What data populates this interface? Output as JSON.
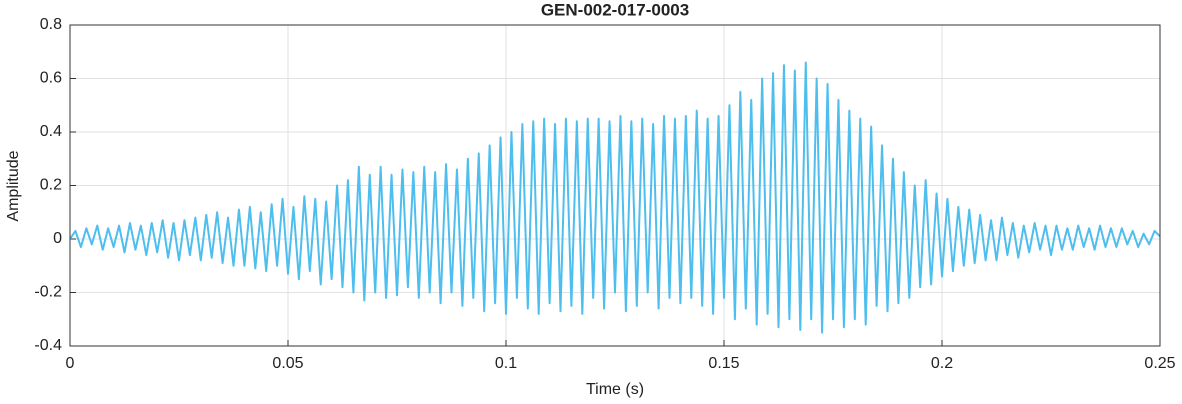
{
  "chart_data": {
    "type": "line",
    "title": "GEN-002-017-0003",
    "xlabel": "Time (s)",
    "ylabel": "Amplitude",
    "color": "#4dbeee",
    "grid": true,
    "xlim": [
      0,
      0.25
    ],
    "ylim": [
      -0.4,
      0.8
    ],
    "xticks": [
      0,
      0.05,
      0.1,
      0.15,
      0.2,
      0.25
    ],
    "yticks": [
      -0.4,
      -0.2,
      0,
      0.2,
      0.4,
      0.6,
      0.8
    ],
    "x": [
      0,
      0.00125,
      0.0025,
      0.00375,
      0.005,
      0.00625,
      0.0075,
      0.00875,
      0.01,
      0.01125,
      0.0125,
      0.01375,
      0.015,
      0.01625,
      0.0175,
      0.01875,
      0.02,
      0.02125,
      0.0225,
      0.02375,
      0.025,
      0.02625,
      0.0275,
      0.02875,
      0.03,
      0.03125,
      0.0325,
      0.03375,
      0.035,
      0.03625,
      0.0375,
      0.03875,
      0.04,
      0.04125,
      0.0425,
      0.04375,
      0.045,
      0.04625,
      0.0475,
      0.04875,
      0.05,
      0.05125,
      0.0525,
      0.05375,
      0.055,
      0.05625,
      0.0575,
      0.05875,
      0.06,
      0.06125,
      0.0625,
      0.06375,
      0.065,
      0.06625,
      0.0675,
      0.06875,
      0.07,
      0.07125,
      0.0725,
      0.07375,
      0.075,
      0.07625,
      0.0775,
      0.07875,
      0.08,
      0.08125,
      0.0825,
      0.08375,
      0.085,
      0.08625,
      0.0875,
      0.08875,
      0.09,
      0.09125,
      0.0925,
      0.09375,
      0.095,
      0.09625,
      0.0975,
      0.09875,
      0.1,
      0.10125,
      0.1025,
      0.10375,
      0.105,
      0.10625,
      0.1075,
      0.10875,
      0.11,
      0.11125,
      0.1125,
      0.11375,
      0.115,
      0.11625,
      0.1175,
      0.11875,
      0.12,
      0.12125,
      0.1225,
      0.12375,
      0.125,
      0.12625,
      0.1275,
      0.12875,
      0.13,
      0.13125,
      0.1325,
      0.13375,
      0.135,
      0.13625,
      0.1375,
      0.13875,
      0.14,
      0.14125,
      0.1425,
      0.14375,
      0.145,
      0.14625,
      0.1475,
      0.14875,
      0.15,
      0.15125,
      0.1525,
      0.15375,
      0.155,
      0.15625,
      0.1575,
      0.15875,
      0.16,
      0.16125,
      0.1625,
      0.16375,
      0.165,
      0.16625,
      0.1675,
      0.16875,
      0.17,
      0.17125,
      0.1725,
      0.17375,
      0.175,
      0.17625,
      0.1775,
      0.17875,
      0.18,
      0.18125,
      0.1825,
      0.18375,
      0.185,
      0.18625,
      0.1875,
      0.18875,
      0.19,
      0.19125,
      0.1925,
      0.19375,
      0.195,
      0.19625,
      0.1975,
      0.19875,
      0.2,
      0.20125,
      0.2025,
      0.20375,
      0.205,
      0.20625,
      0.2075,
      0.20875,
      0.21,
      0.21125,
      0.2125,
      0.21375,
      0.215,
      0.21625,
      0.2175,
      0.21875,
      0.22,
      0.22125,
      0.2225,
      0.22375,
      0.225,
      0.22625,
      0.2275,
      0.22875,
      0.23,
      0.23125,
      0.2325,
      0.23375,
      0.235,
      0.23625,
      0.2375,
      0.23875,
      0.24,
      0.24125,
      0.2425,
      0.24375,
      0.245,
      0.24625,
      0.2475,
      0.24875,
      0.25
    ],
    "values": [
      0.0,
      0.03,
      -0.03,
      0.04,
      -0.02,
      0.05,
      -0.04,
      0.04,
      -0.03,
      0.05,
      -0.05,
      0.06,
      -0.04,
      0.05,
      -0.06,
      0.06,
      -0.05,
      0.07,
      -0.07,
      0.06,
      -0.08,
      0.07,
      -0.06,
      0.08,
      -0.08,
      0.09,
      -0.07,
      0.1,
      -0.09,
      0.08,
      -0.1,
      0.11,
      -0.1,
      0.12,
      -0.11,
      0.1,
      -0.12,
      0.13,
      -0.1,
      0.15,
      -0.13,
      0.12,
      -0.15,
      0.16,
      -0.12,
      0.15,
      -0.17,
      0.14,
      -0.15,
      0.2,
      -0.18,
      0.22,
      -0.2,
      0.27,
      -0.23,
      0.24,
      -0.2,
      0.27,
      -0.22,
      0.24,
      -0.21,
      0.26,
      -0.18,
      0.25,
      -0.22,
      0.27,
      -0.2,
      0.25,
      -0.24,
      0.28,
      -0.2,
      0.26,
      -0.25,
      0.3,
      -0.22,
      0.32,
      -0.27,
      0.35,
      -0.24,
      0.38,
      -0.28,
      0.4,
      -0.22,
      0.43,
      -0.26,
      0.44,
      -0.28,
      0.45,
      -0.24,
      0.43,
      -0.27,
      0.45,
      -0.25,
      0.44,
      -0.28,
      0.45,
      -0.22,
      0.45,
      -0.26,
      0.44,
      -0.2,
      0.46,
      -0.27,
      0.44,
      -0.25,
      0.45,
      -0.2,
      0.43,
      -0.26,
      0.46,
      -0.22,
      0.45,
      -0.24,
      0.46,
      -0.22,
      0.48,
      -0.25,
      0.45,
      -0.28,
      0.46,
      -0.22,
      0.5,
      -0.3,
      0.55,
      -0.26,
      0.52,
      -0.32,
      0.6,
      -0.28,
      0.62,
      -0.33,
      0.65,
      -0.3,
      0.63,
      -0.34,
      0.66,
      -0.3,
      0.6,
      -0.35,
      0.58,
      -0.3,
      0.52,
      -0.33,
      0.48,
      -0.3,
      0.45,
      -0.32,
      0.42,
      -0.25,
      0.35,
      -0.27,
      0.3,
      -0.24,
      0.25,
      -0.22,
      0.2,
      -0.18,
      0.22,
      -0.17,
      0.17,
      -0.14,
      0.15,
      -0.12,
      0.12,
      -0.1,
      0.11,
      -0.09,
      0.09,
      -0.08,
      0.07,
      -0.08,
      0.08,
      -0.06,
      0.06,
      -0.07,
      0.05,
      -0.05,
      0.06,
      -0.04,
      0.05,
      -0.06,
      0.05,
      -0.04,
      0.04,
      -0.04,
      0.05,
      -0.03,
      0.04,
      -0.04,
      0.05,
      -0.03,
      0.04,
      -0.03,
      0.04,
      -0.02,
      0.03,
      -0.03,
      0.02,
      -0.02,
      0.03,
      0.01
    ]
  }
}
